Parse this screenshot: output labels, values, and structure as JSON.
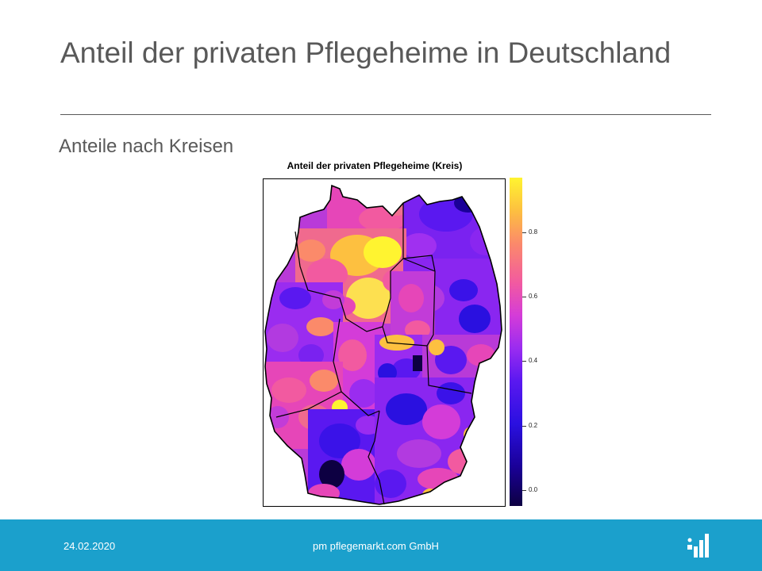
{
  "slide": {
    "title": "Anteil der privaten Pflegeheime in Deutschland",
    "subtitle": "Anteile nach Kreisen"
  },
  "figure": {
    "title": "Anteil der privaten Pflegeheime (Kreis)",
    "legend_ticks": [
      "0.0",
      "0.2",
      "0.4",
      "0.6",
      "0.8"
    ],
    "legend_values": [
      0.0,
      0.2,
      0.4,
      0.6,
      0.8
    ],
    "scale_range": [
      -0.05,
      0.97
    ],
    "color_scale": [
      "#0d0042",
      "#1a0098",
      "#2a10e0",
      "#5a18f0",
      "#9a2cf0",
      "#d43cd8",
      "#f25aa0",
      "#fb8a6a",
      "#fdc040",
      "#fff430"
    ]
  },
  "footer": {
    "date": "24.02.2020",
    "company": "pm pflegemarkt.com GmbH",
    "logo_icon": "pflegemarkt-logo-icon",
    "background": "#1ba0cc"
  }
}
